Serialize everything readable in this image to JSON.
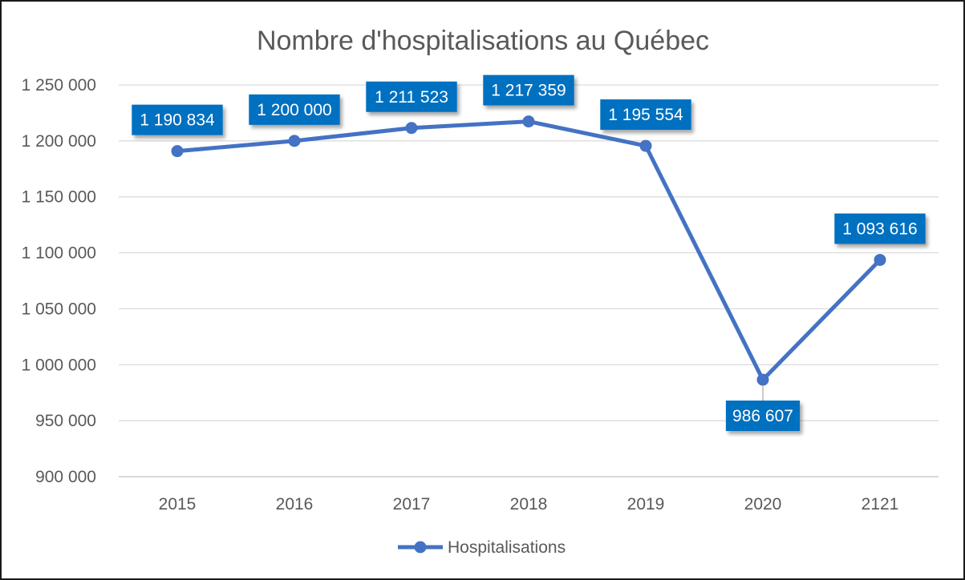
{
  "chart_data": {
    "type": "line",
    "title": "Nombre d'hospitalisations au Québec",
    "xlabel": "",
    "ylabel": "",
    "categories": [
      "2015",
      "2016",
      "2017",
      "2018",
      "2019",
      "2020",
      "2121"
    ],
    "series": [
      {
        "name": "Hospitalisations",
        "values": [
          1190834,
          1200000,
          1211523,
          1217359,
          1195554,
          986607,
          1093616
        ],
        "labels": [
          "1 190 834",
          "1 200 000",
          "1 211 523",
          "1 217 359",
          "1 195 554",
          "986 607",
          "1 093 616"
        ],
        "color": "#4472C4"
      }
    ],
    "ylim": [
      900000,
      1250000
    ],
    "yticks": [
      900000,
      950000,
      1000000,
      1050000,
      1100000,
      1150000,
      1200000,
      1250000
    ],
    "ytick_labels": [
      "900 000",
      "950 000",
      "1 000 000",
      "1 050 000",
      "1 100 000",
      "1 150 000",
      "1 200 000",
      "1 250 000"
    ],
    "grid": true,
    "legend": "bottom",
    "label_color": "#0070C0"
  }
}
